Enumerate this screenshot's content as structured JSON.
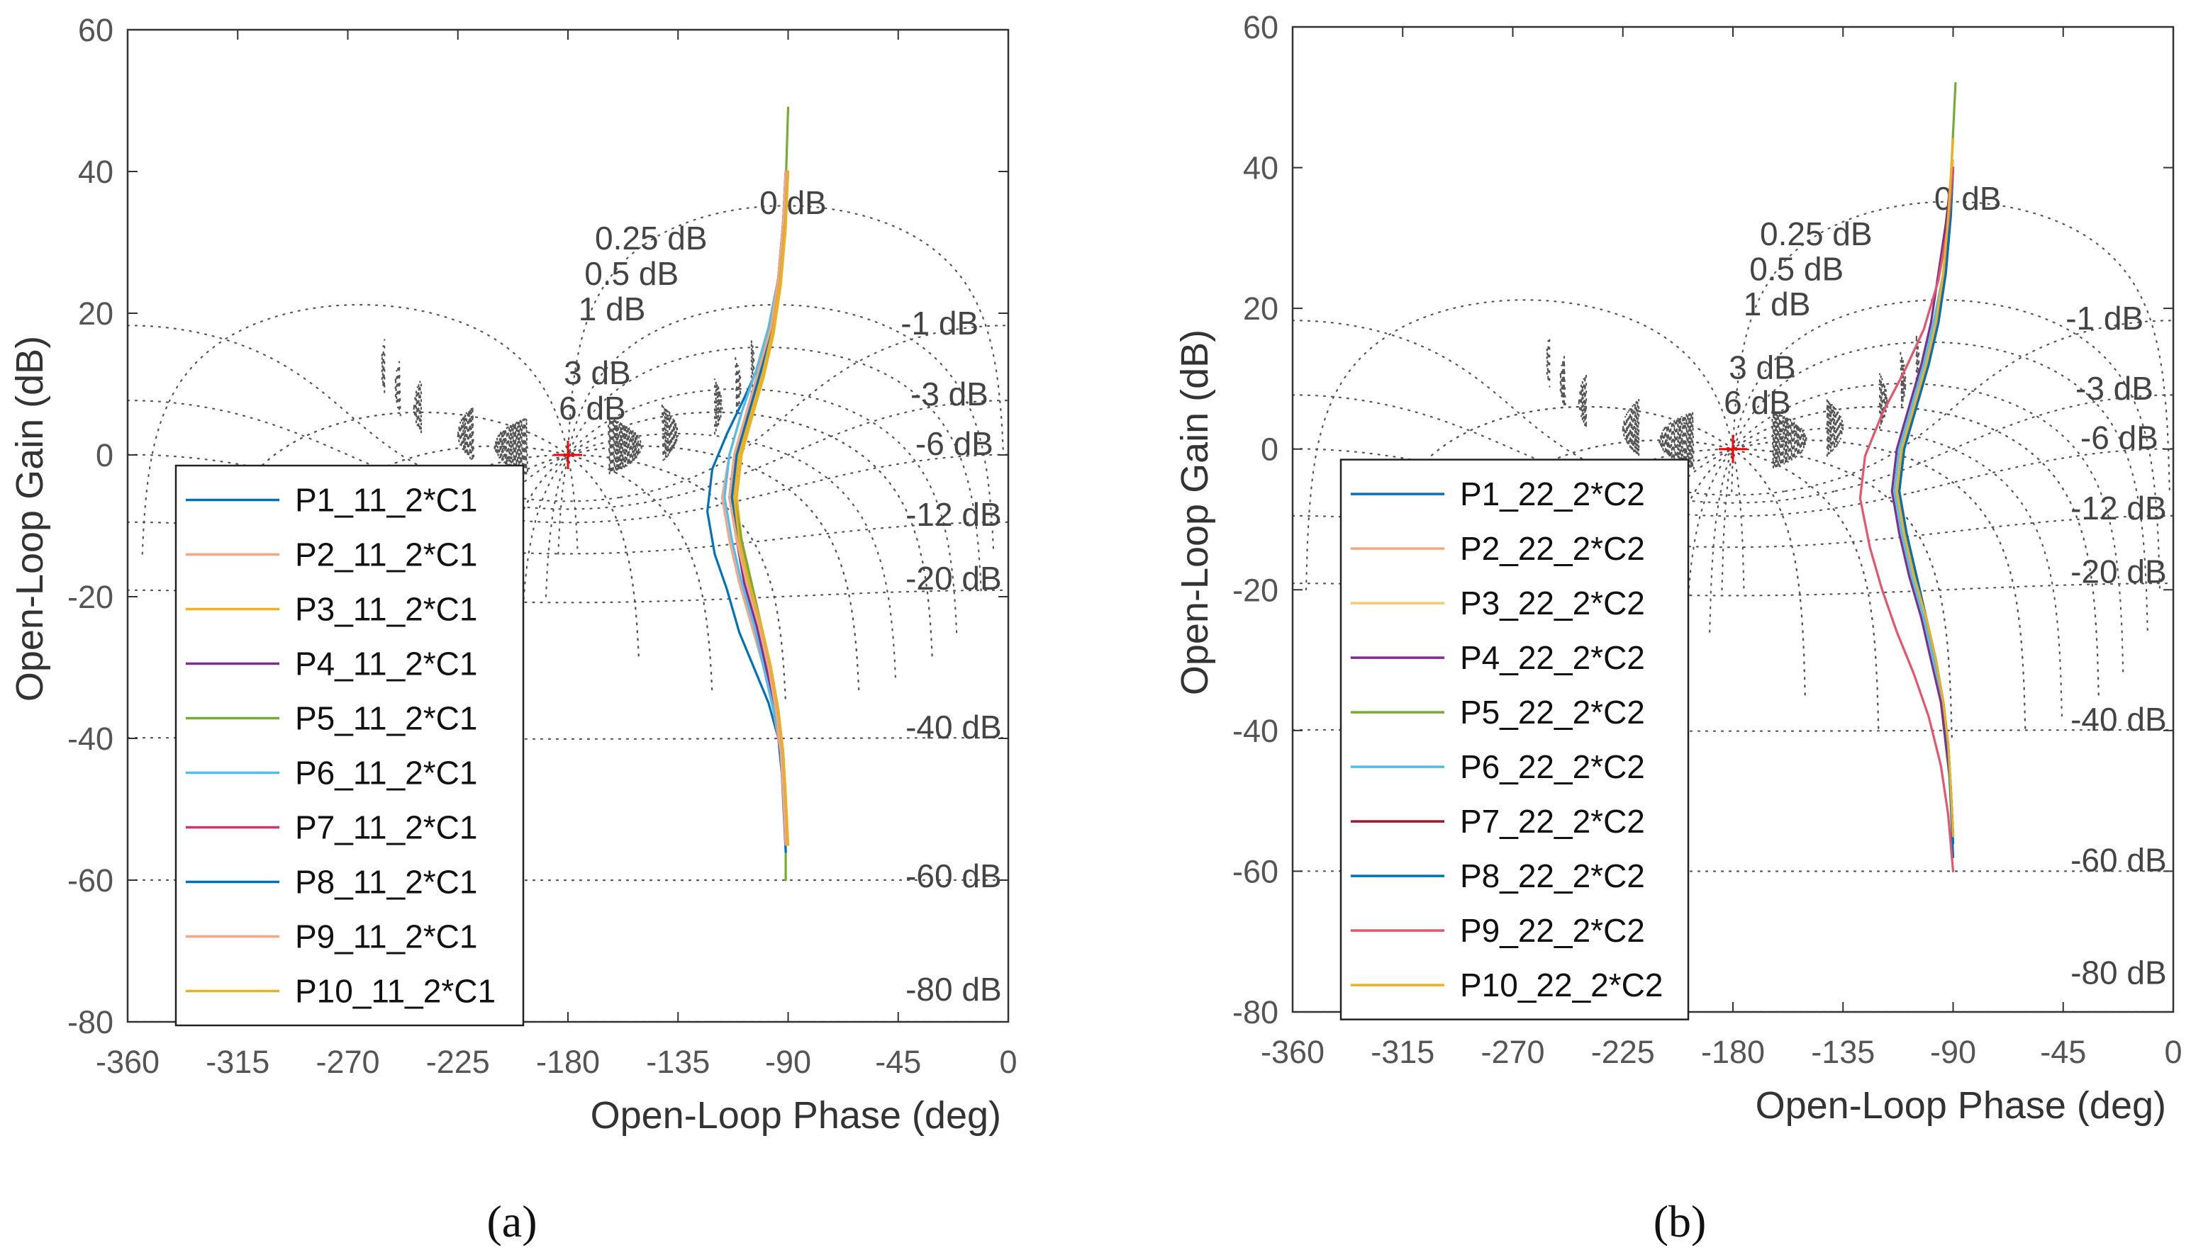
{
  "chart_data": [
    {
      "type": "line",
      "panel_label": "(a)",
      "xlabel": "Open-Loop Phase (deg)",
      "ylabel": "Open-Loop Gain (dB)",
      "xlim": [
        -360,
        0
      ],
      "ylim": [
        -80,
        60
      ],
      "xticks": [
        -360,
        -315,
        -270,
        -225,
        -180,
        -135,
        -90,
        -45,
        0
      ],
      "yticks": [
        -80,
        -60,
        -40,
        -20,
        0,
        20,
        40,
        60
      ],
      "grid": "nichols",
      "critical_point": [
        -180,
        0
      ],
      "legend_location": "bottom-left",
      "closed_loop_gain_labels": [
        {
          "text": "0 dB",
          "x": -88,
          "y": 34
        },
        {
          "text": "0.25 dB",
          "x": -146,
          "y": 29
        },
        {
          "text": "0.5 dB",
          "x": -154,
          "y": 24
        },
        {
          "text": "1 dB",
          "x": -162,
          "y": 19
        },
        {
          "text": "3 dB",
          "x": -168,
          "y": 10
        },
        {
          "text": "6 dB",
          "x": -170,
          "y": 5
        },
        {
          "text": "-1 dB",
          "x": -44,
          "y": 17
        },
        {
          "text": "-3 dB",
          "x": -40,
          "y": 7
        },
        {
          "text": "-6 dB",
          "x": -38,
          "y": 0
        },
        {
          "text": "-12 dB",
          "x": -42,
          "y": -10
        },
        {
          "text": "-20 dB",
          "x": -42,
          "y": -19
        },
        {
          "text": "-40 dB",
          "x": -42,
          "y": -40
        },
        {
          "text": "-60 dB",
          "x": -42,
          "y": -61
        },
        {
          "text": "-80 dB",
          "x": -42,
          "y": -77
        }
      ],
      "series": [
        {
          "name": "P1_11_2*C1",
          "color": "#0072BD",
          "x": [
            -91,
            -92,
            -94,
            -98,
            -104,
            -110,
            -115,
            -120,
            -123,
            -121,
            -115,
            -108,
            -100,
            -95,
            -92,
            -91
          ],
          "y": [
            -53,
            -47,
            -40,
            -35,
            -30,
            -25,
            -19,
            -14,
            -8,
            -2,
            3,
            8,
            14,
            20,
            30,
            38
          ]
        },
        {
          "name": "P2_11_2*C1",
          "color": "#F4A582",
          "x": [
            -91,
            -92,
            -93,
            -96,
            -100,
            -105,
            -110,
            -114,
            -117,
            -114,
            -109,
            -103,
            -98,
            -94,
            -91,
            -91
          ],
          "y": [
            -55,
            -48,
            -42,
            -36,
            -30,
            -24,
            -18,
            -12,
            -6,
            0,
            6,
            12,
            18,
            25,
            33,
            39
          ]
        },
        {
          "name": "P3_11_2*C1",
          "color": "#EDB120",
          "x": [
            -90,
            -91,
            -92,
            -94,
            -97,
            -101,
            -105,
            -109,
            -111,
            -109,
            -105,
            -100,
            -96,
            -93,
            -91,
            -90
          ],
          "y": [
            -55,
            -48,
            -42,
            -36,
            -30,
            -24,
            -18,
            -12,
            -6,
            0,
            5,
            11,
            17,
            24,
            32,
            40
          ]
        },
        {
          "name": "P4_11_2*C1",
          "color": "#7E2F8E",
          "x": [
            -91,
            -92,
            -93,
            -95,
            -99,
            -103,
            -108,
            -111,
            -114,
            -112,
            -107,
            -102,
            -97,
            -94,
            -92,
            -91
          ],
          "y": [
            -55,
            -48,
            -42,
            -36,
            -30,
            -24,
            -18,
            -12,
            -6,
            0,
            6,
            12,
            18,
            25,
            33,
            40
          ]
        },
        {
          "name": "P5_11_2*C1",
          "color": "#77AC30",
          "x": [
            -91,
            -91,
            -92,
            -94,
            -97,
            -101,
            -105,
            -109,
            -112,
            -110,
            -105,
            -100,
            -96,
            -93,
            -91,
            -90
          ],
          "y": [
            -60,
            -50,
            -42,
            -36,
            -30,
            -24,
            -18,
            -12,
            -6,
            0,
            6,
            12,
            18,
            26,
            38,
            49
          ]
        },
        {
          "name": "P6_11_2*C1",
          "color": "#4DBEEE",
          "x": [
            -91,
            -92,
            -93,
            -96,
            -100,
            -104,
            -109,
            -113,
            -116,
            -114,
            -109,
            -103,
            -98,
            -94,
            -92,
            -91
          ],
          "y": [
            -54,
            -47,
            -41,
            -36,
            -30,
            -24,
            -18,
            -12,
            -6,
            0,
            6,
            12,
            18,
            25,
            33,
            40
          ]
        },
        {
          "name": "P7_11_2*C1",
          "color": "#D6336C",
          "x": [
            -91,
            -92,
            -93,
            -95,
            -98,
            -102,
            -106,
            -110,
            -113,
            -111,
            -106,
            -101,
            -97,
            -94,
            -92,
            -91
          ],
          "y": [
            -55,
            -48,
            -42,
            -36,
            -30,
            -24,
            -18,
            -12,
            -6,
            0,
            6,
            12,
            18,
            25,
            33,
            40
          ]
        },
        {
          "name": "P8_11_2*C1",
          "color": "#0072BD",
          "x": [
            -91,
            -92,
            -93,
            -95,
            -98,
            -102,
            -106,
            -110,
            -113,
            -111,
            -106,
            -101,
            -97,
            -94,
            -92,
            -91
          ],
          "y": [
            -56,
            -49,
            -42,
            -36,
            -30,
            -24,
            -18,
            -12,
            -6,
            0,
            6,
            12,
            18,
            25,
            33,
            40
          ]
        },
        {
          "name": "P9_11_2*C1",
          "color": "#F4A582",
          "x": [
            -91,
            -92,
            -93,
            -95,
            -98,
            -102,
            -107,
            -111,
            -114,
            -112,
            -107,
            -102,
            -97,
            -94,
            -92,
            -91
          ],
          "y": [
            -55,
            -48,
            -42,
            -36,
            -30,
            -24,
            -18,
            -12,
            -6,
            0,
            6,
            12,
            18,
            25,
            33,
            40
          ]
        },
        {
          "name": "P10_11_2*C1",
          "color": "#EDB120",
          "x": [
            -90,
            -91,
            -92,
            -94,
            -97,
            -101,
            -106,
            -110,
            -112,
            -110,
            -105,
            -100,
            -96,
            -93,
            -91,
            -90
          ],
          "y": [
            -55,
            -48,
            -42,
            -36,
            -30,
            -24,
            -18,
            -12,
            -6,
            0,
            6,
            12,
            18,
            25,
            33,
            40
          ]
        }
      ]
    },
    {
      "type": "line",
      "panel_label": "(b)",
      "xlabel": "Open-Loop Phase (deg)",
      "ylabel": "Open-Loop Gain (dB)",
      "xlim": [
        -360,
        0
      ],
      "ylim": [
        -80,
        60
      ],
      "xticks": [
        -360,
        -315,
        -270,
        -225,
        -180,
        -135,
        -90,
        -45,
        0
      ],
      "yticks": [
        -80,
        -60,
        -40,
        -20,
        0,
        20,
        40,
        60
      ],
      "grid": "nichols",
      "critical_point": [
        -180,
        0
      ],
      "legend_location": "bottom-left",
      "closed_loop_gain_labels": [
        {
          "text": "0 dB",
          "x": -84,
          "y": 34
        },
        {
          "text": "0.25 dB",
          "x": -146,
          "y": 29
        },
        {
          "text": "0.5 dB",
          "x": -154,
          "y": 24
        },
        {
          "text": "1 dB",
          "x": -162,
          "y": 19
        },
        {
          "text": "3 dB",
          "x": -168,
          "y": 10
        },
        {
          "text": "6 dB",
          "x": -170,
          "y": 5
        },
        {
          "text": "-1 dB",
          "x": -44,
          "y": 17
        },
        {
          "text": "-3 dB",
          "x": -40,
          "y": 7
        },
        {
          "text": "-6 dB",
          "x": -38,
          "y": 0
        },
        {
          "text": "-12 dB",
          "x": -42,
          "y": -10
        },
        {
          "text": "-20 dB",
          "x": -42,
          "y": -19
        },
        {
          "text": "-40 dB",
          "x": -42,
          "y": -40
        },
        {
          "text": "-60 dB",
          "x": -42,
          "y": -60
        },
        {
          "text": "-80 dB",
          "x": -42,
          "y": -76
        }
      ],
      "series": [
        {
          "name": "P1_22_2*C2",
          "color": "#0072BD",
          "x": [
            -90,
            -91,
            -92,
            -94,
            -97,
            -101,
            -106,
            -110,
            -113,
            -111,
            -106,
            -101,
            -97,
            -94,
            -92,
            -90
          ],
          "y": [
            -56,
            -49,
            -42,
            -36,
            -30,
            -24,
            -18,
            -12,
            -6,
            0,
            6,
            12,
            18,
            25,
            33,
            40
          ]
        },
        {
          "name": "P2_22_2*C2",
          "color": "#F4A582",
          "x": [
            -90,
            -91,
            -92,
            -94,
            -97,
            -101,
            -106,
            -110,
            -113,
            -111,
            -106,
            -101,
            -97,
            -94,
            -92,
            -90
          ],
          "y": [
            -55,
            -48,
            -42,
            -36,
            -30,
            -24,
            -18,
            -12,
            -6,
            0,
            6,
            12,
            18,
            25,
            33,
            41
          ]
        },
        {
          "name": "P3_22_2*C2",
          "color": "#F7C96B",
          "x": [
            -90,
            -91,
            -92,
            -94,
            -97,
            -101,
            -106,
            -110,
            -113,
            -111,
            -106,
            -101,
            -97,
            -94,
            -92,
            -90
          ],
          "y": [
            -55,
            -48,
            -42,
            -36,
            -30,
            -24,
            -18,
            -12,
            -6,
            0,
            6,
            12,
            18,
            25,
            33,
            41
          ]
        },
        {
          "name": "P4_22_2*C2",
          "color": "#7E2F8E",
          "x": [
            -90,
            -91,
            -93,
            -95,
            -99,
            -103,
            -108,
            -112,
            -115,
            -113,
            -108,
            -103,
            -99,
            -96,
            -93,
            -91
          ],
          "y": [
            -55,
            -48,
            -42,
            -36,
            -30,
            -24,
            -18,
            -12,
            -6,
            0,
            6,
            12,
            18,
            25,
            32,
            38
          ]
        },
        {
          "name": "P5_22_2*C2",
          "color": "#77AC30",
          "x": [
            -90,
            -91,
            -92,
            -94,
            -97,
            -101,
            -105,
            -109,
            -112,
            -110,
            -105,
            -100,
            -96,
            -93,
            -91,
            -89
          ],
          "y": [
            -55,
            -48,
            -42,
            -36,
            -30,
            -24,
            -18,
            -12,
            -6,
            0,
            6,
            12,
            18,
            26,
            38,
            52
          ]
        },
        {
          "name": "P6_22_2*C2",
          "color": "#4DBEEE",
          "x": [
            -90,
            -91,
            -92,
            -94,
            -98,
            -102,
            -107,
            -111,
            -114,
            -112,
            -107,
            -102,
            -98,
            -94,
            -92,
            -90
          ],
          "y": [
            -55,
            -48,
            -42,
            -36,
            -30,
            -24,
            -18,
            -12,
            -6,
            0,
            6,
            12,
            18,
            25,
            33,
            40
          ]
        },
        {
          "name": "P7_22_2*C2",
          "color": "#A2142F",
          "x": [
            -90,
            -91,
            -92,
            -94,
            -97,
            -101,
            -105,
            -109,
            -112,
            -110,
            -105,
            -100,
            -96,
            -93,
            -91,
            -90
          ],
          "y": [
            -55,
            -48,
            -42,
            -36,
            -30,
            -24,
            -18,
            -12,
            -6,
            0,
            6,
            12,
            18,
            25,
            33,
            40
          ]
        },
        {
          "name": "P8_22_2*C2",
          "color": "#0072BD",
          "x": [
            -90,
            -91,
            -92,
            -94,
            -97,
            -101,
            -105,
            -109,
            -112,
            -110,
            -105,
            -100,
            -96,
            -93,
            -91,
            -90
          ],
          "y": [
            -58,
            -50,
            -43,
            -36,
            -30,
            -24,
            -18,
            -12,
            -6,
            0,
            6,
            12,
            18,
            25,
            33,
            40
          ]
        },
        {
          "name": "P9_22_2*C2",
          "color": "#E8556B",
          "x": [
            -90,
            -92,
            -95,
            -100,
            -106,
            -113,
            -119,
            -124,
            -128,
            -126,
            -119,
            -110,
            -102,
            -96,
            -92,
            -90
          ],
          "y": [
            -60,
            -52,
            -45,
            -38,
            -32,
            -26,
            -20,
            -14,
            -7,
            -1,
            5,
            11,
            17,
            24,
            32,
            40
          ]
        },
        {
          "name": "P10_22_2*C2",
          "color": "#EDB120",
          "x": [
            -90,
            -91,
            -92,
            -94,
            -97,
            -101,
            -106,
            -110,
            -113,
            -111,
            -106,
            -101,
            -97,
            -94,
            -92,
            -90
          ],
          "y": [
            -55,
            -48,
            -42,
            -36,
            -30,
            -24,
            -18,
            -12,
            -6,
            0,
            6,
            12,
            18,
            25,
            33,
            44
          ]
        }
      ]
    }
  ]
}
